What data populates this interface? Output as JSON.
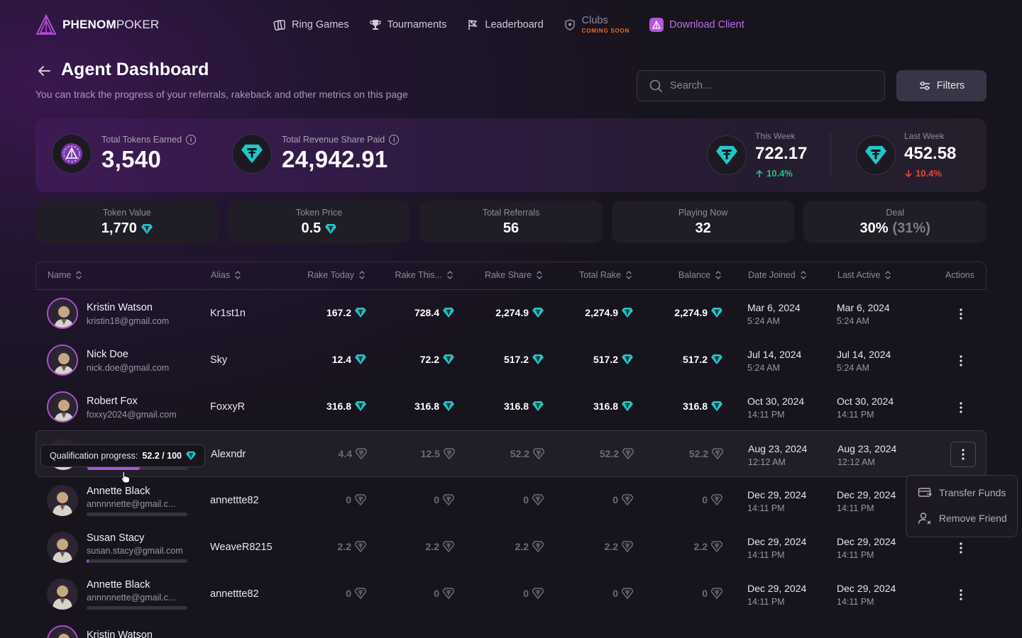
{
  "brand": {
    "name_bold": "PHENOM",
    "name_light": "POKER"
  },
  "nav": {
    "items": [
      "Ring Games",
      "Tournaments",
      "Leaderboard"
    ],
    "clubs_label": "Clubs",
    "clubs_badge": "COMING SOON",
    "download_label": "Download Client"
  },
  "header": {
    "title": "Agent Dashboard",
    "subtitle": "You can track the progress of your referrals, rakeback and other metrics on this page"
  },
  "search": {
    "placeholder": "Search..."
  },
  "filters_label": "Filters",
  "hero": {
    "tokens_label": "Total Tokens Earned",
    "tokens_value": "3,540",
    "revenue_label": "Total Revenue Share Paid",
    "revenue_value": "24,942.91",
    "this_week_label": "This Week",
    "this_week_value": "722.17",
    "this_week_change": "10.4%",
    "last_week_label": "Last Week",
    "last_week_value": "452.58",
    "last_week_change": "10.4%"
  },
  "cards": {
    "token_value_label": "Token Value",
    "token_value": "1,770",
    "token_price_label": "Token Price",
    "token_price": "0.5",
    "referrals_label": "Total Referrals",
    "referrals": "56",
    "playing_label": "Playing Now",
    "playing": "32",
    "deal_label": "Deal",
    "deal": "30%",
    "deal_muted": "(31%)"
  },
  "table": {
    "columns": [
      "Name",
      "Alias",
      "Rake Today",
      "Rake This...",
      "Rake Share",
      "Total Rake",
      "Balance",
      "Date Joined",
      "Last Active",
      "Actions"
    ],
    "rows": [
      {
        "name": "Kristin Watson",
        "email": "kristin18@gmail.com",
        "alias": "Kr1st1n",
        "rake_today": "167.2",
        "rake_this": "728.4",
        "rake_share": "2,274.9",
        "total_rake": "2,274.9",
        "balance": "2,274.9",
        "joined_date": "Mar 6, 2024",
        "joined_time": "5:24 AM",
        "active_date": "Mar 6, 2024",
        "active_time": "5:24 AM"
      },
      {
        "name": "Nick Doe",
        "email": "nick.doe@gmail.com",
        "alias": "Sky",
        "rake_today": "12.4",
        "rake_this": "72.2",
        "rake_share": "517.2",
        "total_rake": "517.2",
        "balance": "517.2",
        "joined_date": "Jul 14, 2024",
        "joined_time": "5:24 AM",
        "active_date": "Jul 14, 2024",
        "active_time": "5:24 AM"
      },
      {
        "name": "Robert Fox",
        "email": "foxxy2024@gmail.com",
        "alias": "FoxxyR",
        "rake_today": "316.8",
        "rake_this": "316.8",
        "rake_share": "316.8",
        "total_rake": "316.8",
        "balance": "316.8",
        "joined_date": "Oct 30, 2024",
        "joined_time": "14:11 PM",
        "active_date": "Oct 30, 2024",
        "active_time": "14:11 PM"
      },
      {
        "name": "",
        "email": "",
        "alias": "Alexndr",
        "rake_today": "4.4",
        "rake_this": "12.5",
        "rake_share": "52.2",
        "total_rake": "52.2",
        "balance": "52.2",
        "joined_date": "Aug 23, 2024",
        "joined_time": "12:12 AM",
        "active_date": "Aug 23, 2024",
        "active_time": "12:12 AM",
        "progress": 0.52
      },
      {
        "name": "Annette Black",
        "email": "annnnnette@gmail.c...",
        "alias": "annettte82",
        "rake_today": "0",
        "rake_this": "0",
        "rake_share": "0",
        "total_rake": "0",
        "balance": "0",
        "joined_date": "Dec 29, 2024",
        "joined_time": "14:11 PM",
        "active_date": "Dec 29, 2024",
        "active_time": "14:11 PM",
        "progress": 0
      },
      {
        "name": "Susan Stacy",
        "email": "susan.stacy@gmail.com",
        "alias": "WeaveR8215",
        "rake_today": "2.2",
        "rake_this": "2.2",
        "rake_share": "2.2",
        "total_rake": "2.2",
        "balance": "2.2",
        "joined_date": "Dec 29, 2024",
        "joined_time": "14:11 PM",
        "active_date": "Dec 29, 2024",
        "active_time": "14:11 PM",
        "progress": 0.022
      },
      {
        "name": "Annette Black",
        "email": "annnnnette@gmail.c...",
        "alias": "annettte82",
        "rake_today": "0",
        "rake_this": "0",
        "rake_share": "0",
        "total_rake": "0",
        "balance": "0",
        "joined_date": "Dec 29, 2024",
        "joined_time": "14:11 PM",
        "active_date": "Dec 29, 2024",
        "active_time": "14:11 PM",
        "progress": 0
      },
      {
        "name": "Kristin Watson"
      }
    ]
  },
  "tooltip": {
    "label": "Qualification progress:",
    "value": "52.2 / 100"
  },
  "menu": {
    "transfer": "Transfer Funds",
    "remove": "Remove Friend"
  },
  "colors": {
    "accent": "#b34fd6",
    "token": "#1fc8c8",
    "up": "#26c281",
    "down": "#e2493c"
  }
}
